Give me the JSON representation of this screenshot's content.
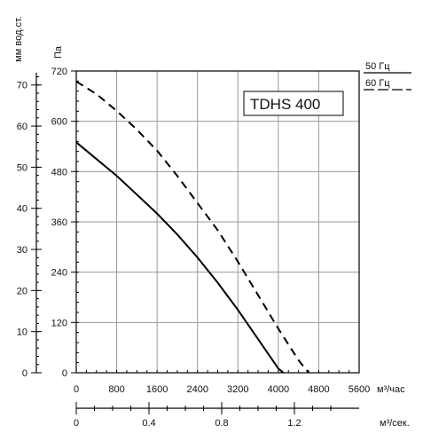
{
  "chart_data": {
    "type": "line",
    "title": "TDHS 400",
    "xlabel": "м³/час",
    "ylabel": "Па",
    "xlim": [
      0,
      5600
    ],
    "ylim": [
      0,
      720
    ],
    "grid": true,
    "legend_position": "top-right",
    "x_ticks": [
      0,
      800,
      1600,
      2400,
      3200,
      4000,
      4800,
      5600
    ],
    "y_ticks": [
      0,
      120,
      240,
      360,
      480,
      600,
      720
    ],
    "secondary_y": {
      "label": "мм вод.ст.",
      "lim": [
        0,
        73.4
      ],
      "ticks": [
        0,
        10,
        20,
        30,
        40,
        50,
        60,
        70
      ]
    },
    "secondary_x": {
      "label": "м³/сек.",
      "lim": [
        0,
        1.556
      ],
      "ticks": [
        0,
        0.4,
        0.8,
        1.2
      ],
      "tick_labels": [
        "0",
        "0.4",
        "0.8",
        "1.2"
      ]
    },
    "series": [
      {
        "name": "50 Гц",
        "style": "solid",
        "x": [
          0,
          400,
          800,
          1200,
          1600,
          2000,
          2400,
          2800,
          3200,
          3600,
          4000,
          4100
        ],
        "y": [
          550,
          510,
          470,
          425,
          380,
          330,
          275,
          215,
          150,
          80,
          10,
          0
        ]
      },
      {
        "name": "60 Гц",
        "style": "dashed",
        "x": [
          0,
          400,
          800,
          1200,
          1600,
          2000,
          2400,
          2800,
          3200,
          3600,
          4000,
          4400,
          4600
        ],
        "y": [
          695,
          665,
          625,
          580,
          530,
          470,
          405,
          340,
          265,
          185,
          105,
          30,
          0
        ]
      }
    ]
  },
  "colors": {
    "line": "#000000",
    "grid": "#999999",
    "axis": "#000000"
  }
}
